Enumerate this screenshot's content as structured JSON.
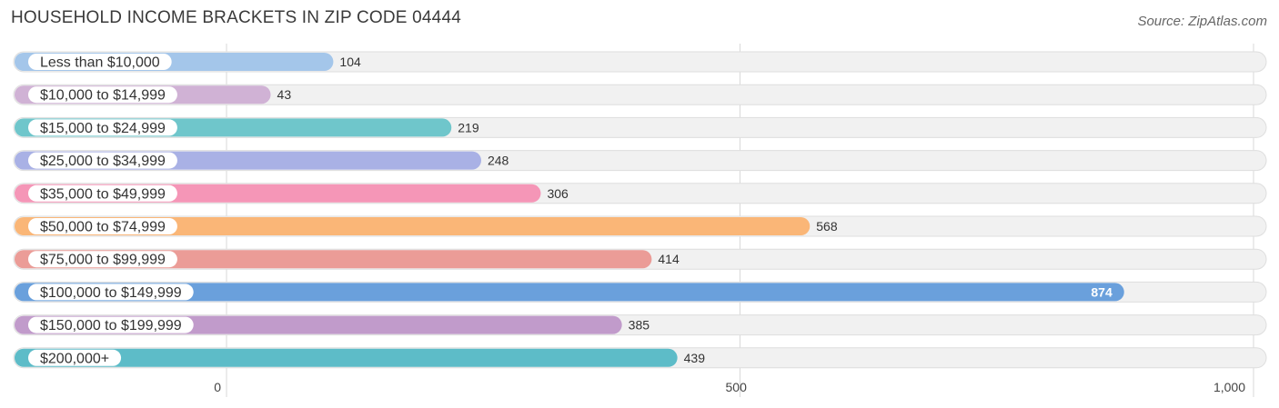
{
  "title": "HOUSEHOLD INCOME BRACKETS IN ZIP CODE 04444",
  "source": "Source: ZipAtlas.com",
  "chart_data": {
    "type": "bar",
    "orientation": "horizontal",
    "categories": [
      "Less than $10,000",
      "$10,000 to $14,999",
      "$15,000 to $24,999",
      "$25,000 to $34,999",
      "$35,000 to $49,999",
      "$50,000 to $74,999",
      "$75,000 to $99,999",
      "$100,000 to $149,999",
      "$150,000 to $199,999",
      "$200,000+"
    ],
    "values": [
      104,
      43,
      219,
      248,
      306,
      568,
      414,
      874,
      385,
      439
    ],
    "value_labels": [
      "104",
      "43",
      "219",
      "248",
      "306",
      "568",
      "414",
      "874",
      "385",
      "439"
    ],
    "colors": [
      "#a4c6ea",
      "#d0b2d5",
      "#6fc6cb",
      "#a9b1e5",
      "#f596b7",
      "#fab677",
      "#eb9c97",
      "#6aa0dc",
      "#c19bcb",
      "#5dbcc8"
    ],
    "xlim": [
      0,
      1000
    ],
    "xticks": [
      0,
      500,
      1000
    ],
    "xtick_labels": [
      "0",
      "500",
      "1,000"
    ],
    "grid": true,
    "legend": false
  }
}
